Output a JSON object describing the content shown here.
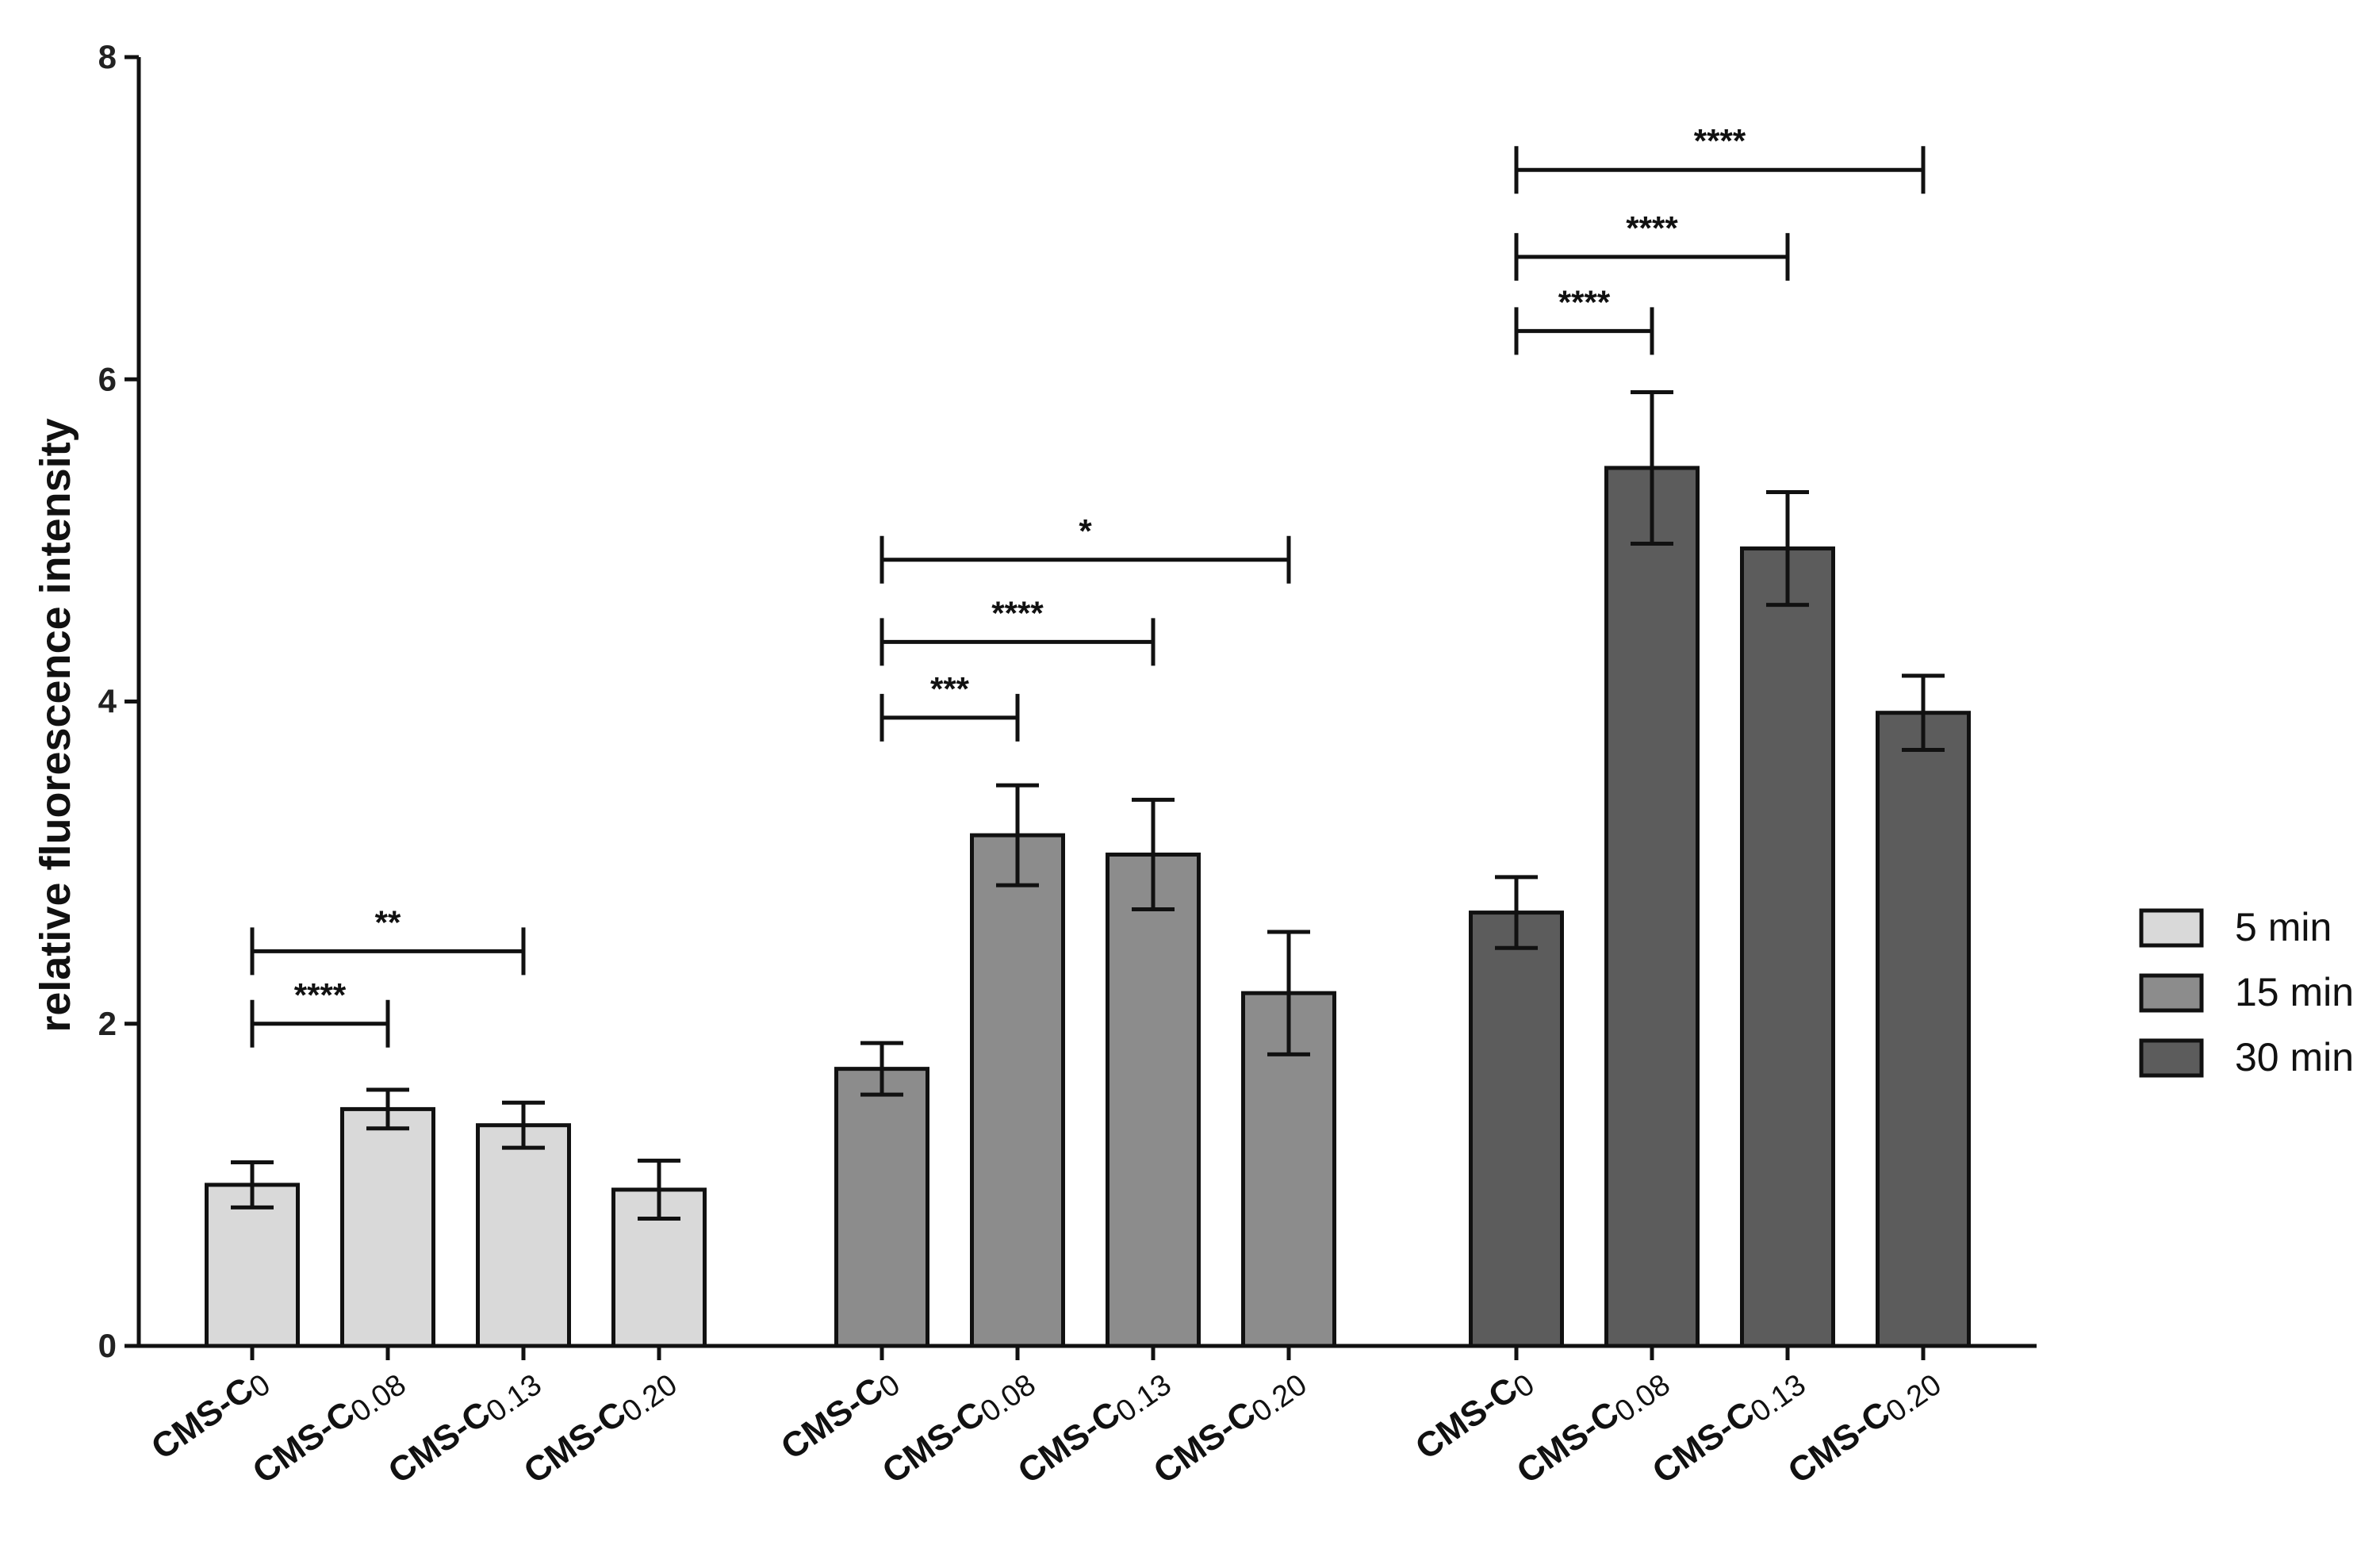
{
  "chart_data": {
    "type": "bar",
    "title": "",
    "xlabel": "",
    "ylabel": "relative fluorescence intensity",
    "ylim": [
      0,
      8
    ],
    "yticks": [
      "0",
      "2",
      "4",
      "6",
      "8"
    ],
    "categories": [
      {
        "prefix": "CMS-C",
        "sub": "0"
      },
      {
        "prefix": "CMS-C",
        "sub": "0.08"
      },
      {
        "prefix": "CMS-C",
        "sub": "0.13"
      },
      {
        "prefix": "CMS-C",
        "sub": "0.20"
      }
    ],
    "series": [
      {
        "name": "5 min",
        "color": "#d9d9d9",
        "values": [
          1.0,
          1.47,
          1.37,
          0.97
        ],
        "errors": [
          0.14,
          0.12,
          0.14,
          0.18
        ]
      },
      {
        "name": "15 min",
        "color": "#8c8c8c",
        "values": [
          1.72,
          3.17,
          3.05,
          2.19
        ],
        "errors": [
          0.16,
          0.31,
          0.34,
          0.38
        ]
      },
      {
        "name": "30 min",
        "color": "#5c5c5c",
        "values": [
          2.69,
          5.45,
          4.95,
          3.93
        ],
        "errors": [
          0.22,
          0.47,
          0.35,
          0.23
        ]
      }
    ],
    "significance": [
      {
        "series": 0,
        "from": 0,
        "to": 1,
        "y": 2.0,
        "label": "****"
      },
      {
        "series": 0,
        "from": 0,
        "to": 2,
        "y": 2.45,
        "label": "**"
      },
      {
        "series": 1,
        "from": 0,
        "to": 1,
        "y": 3.9,
        "label": "***"
      },
      {
        "series": 1,
        "from": 0,
        "to": 2,
        "y": 4.37,
        "label": "****"
      },
      {
        "series": 1,
        "from": 0,
        "to": 3,
        "y": 4.88,
        "label": "*"
      },
      {
        "series": 2,
        "from": 0,
        "to": 1,
        "y": 6.3,
        "label": "****"
      },
      {
        "series": 2,
        "from": 0,
        "to": 2,
        "y": 6.76,
        "label": "****"
      },
      {
        "series": 2,
        "from": 0,
        "to": 3,
        "y": 7.3,
        "label": "****"
      }
    ]
  }
}
